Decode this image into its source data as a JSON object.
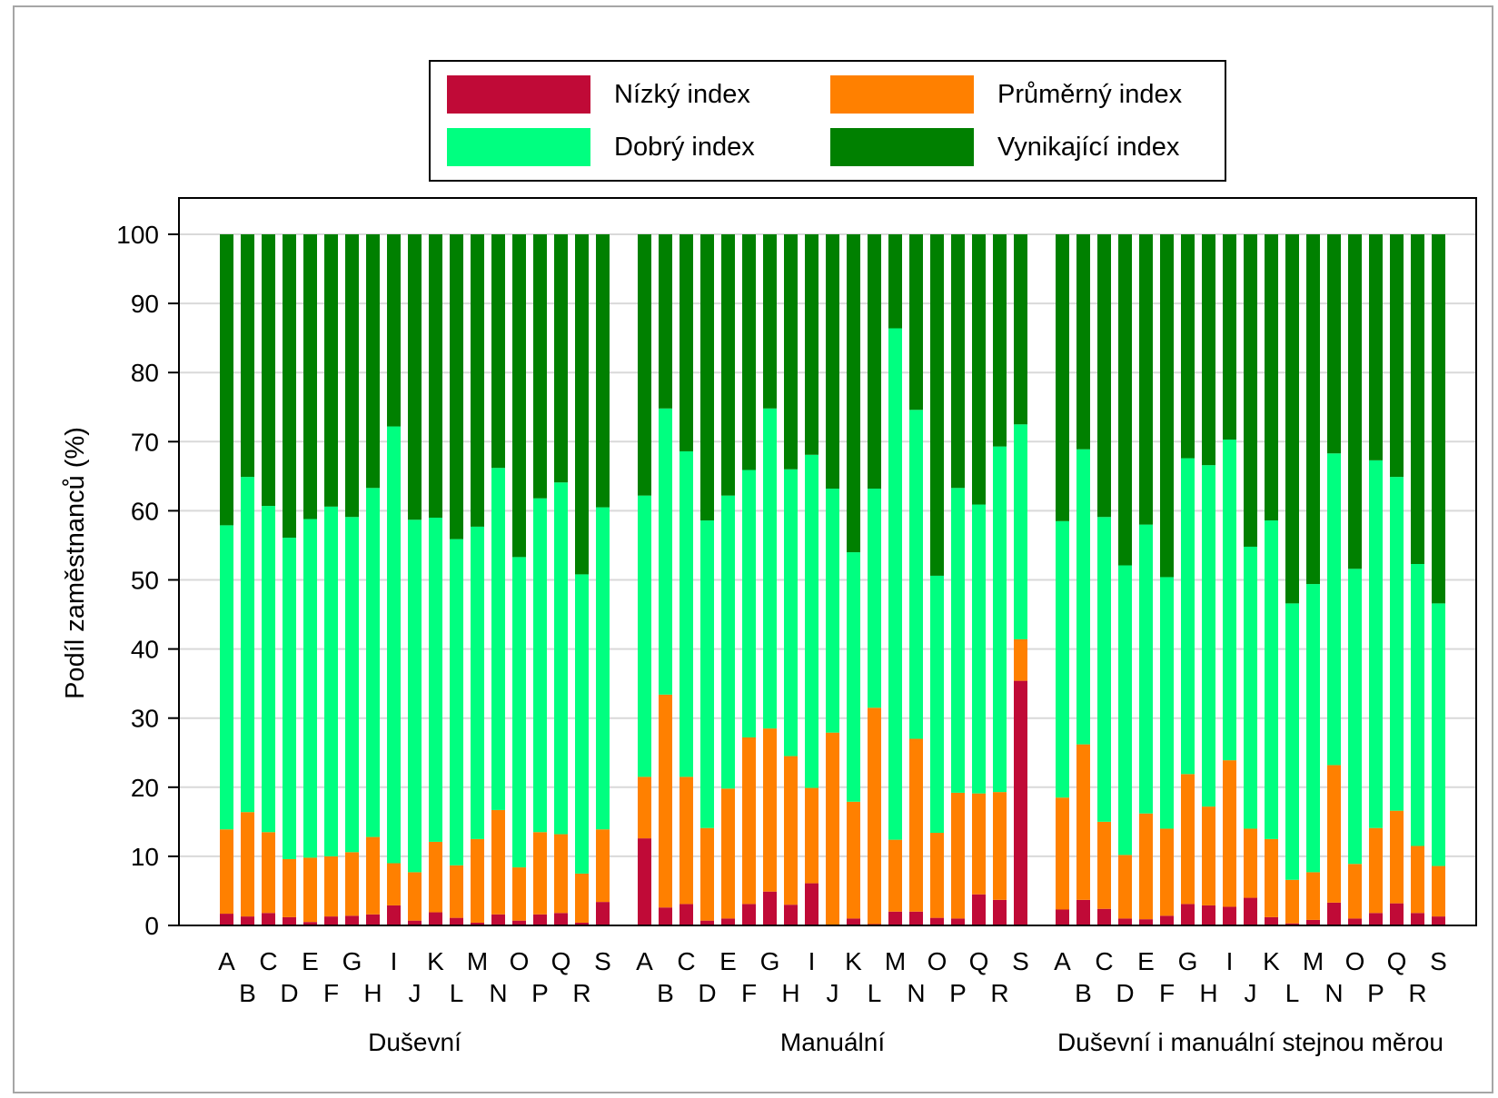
{
  "chart_data": {
    "type": "bar",
    "stacked": true,
    "ylabel": "Podíl zaměstnanců (%)",
    "xlabel": "",
    "ylim": [
      0,
      100
    ],
    "yticks": [
      0,
      10,
      20,
      30,
      40,
      50,
      60,
      70,
      80,
      90,
      100
    ],
    "grid": "horizontal",
    "legend_position": "top",
    "series": [
      {
        "name": "Nízký index",
        "color": "#c00a37"
      },
      {
        "name": "Průměrný index",
        "color": "#ff8000"
      },
      {
        "name": "Dobrý index",
        "color": "#00ff80"
      },
      {
        "name": "Vynikající index",
        "color": "#008000"
      }
    ],
    "groups": [
      {
        "name": "Duševní",
        "categories": [
          "A",
          "B",
          "C",
          "D",
          "E",
          "F",
          "G",
          "H",
          "I",
          "J",
          "K",
          "L",
          "M",
          "N",
          "O",
          "P",
          "Q",
          "R",
          "S"
        ],
        "nizky": [
          1.7,
          1.3,
          1.8,
          1.2,
          0.5,
          1.3,
          1.4,
          1.6,
          2.9,
          0.7,
          1.9,
          1.1,
          0.4,
          1.6,
          0.7,
          1.6,
          1.8,
          0.4,
          3.4
        ],
        "prumerny_cum": [
          13.9,
          16.4,
          13.5,
          9.6,
          9.8,
          10.0,
          10.6,
          12.8,
          9.0,
          7.7,
          12.1,
          8.7,
          12.5,
          16.7,
          8.4,
          13.5,
          13.2,
          7.5,
          13.9
        ],
        "dobry_cum": [
          57.9,
          64.9,
          60.7,
          56.1,
          58.8,
          60.6,
          59.1,
          63.3,
          72.2,
          58.7,
          59.0,
          55.9,
          57.7,
          66.2,
          53.3,
          61.8,
          64.1,
          50.8,
          60.5
        ]
      },
      {
        "name": "Manuální",
        "categories": [
          "A",
          "B",
          "C",
          "D",
          "E",
          "F",
          "G",
          "H",
          "I",
          "J",
          "K",
          "L",
          "M",
          "N",
          "O",
          "P",
          "Q",
          "R",
          "S"
        ],
        "nizky": [
          12.6,
          2.6,
          3.1,
          0.7,
          1.0,
          3.1,
          4.9,
          3.0,
          6.1,
          0.1,
          1.0,
          0.2,
          2.0,
          2.0,
          1.1,
          1.0,
          4.5,
          3.7,
          35.4
        ],
        "prumerny_cum": [
          21.5,
          33.4,
          21.5,
          14.1,
          19.8,
          27.2,
          28.5,
          24.5,
          19.9,
          27.9,
          17.9,
          31.5,
          12.4,
          27.0,
          13.4,
          19.2,
          19.1,
          19.3,
          41.4
        ],
        "dobry_cum": [
          62.2,
          74.8,
          68.6,
          58.6,
          62.2,
          65.9,
          74.8,
          66.0,
          68.1,
          63.2,
          54.0,
          63.2,
          86.4,
          74.6,
          50.6,
          63.3,
          60.9,
          69.3,
          72.5
        ]
      },
      {
        "name": "Duševní i manuální stejnou měrou",
        "categories": [
          "A",
          "B",
          "C",
          "D",
          "E",
          "F",
          "G",
          "H",
          "I",
          "J",
          "K",
          "L",
          "M",
          "N",
          "O",
          "P",
          "Q",
          "R",
          "S"
        ],
        "nizky": [
          2.3,
          3.7,
          2.4,
          1.0,
          0.9,
          1.4,
          3.1,
          2.9,
          2.7,
          4.0,
          1.2,
          0.3,
          0.8,
          3.3,
          1.0,
          1.8,
          3.2,
          1.8,
          1.3
        ],
        "prumerny_cum": [
          18.5,
          26.2,
          15.0,
          10.2,
          16.2,
          14.0,
          21.9,
          17.2,
          23.9,
          14.0,
          12.5,
          6.6,
          7.7,
          23.2,
          8.9,
          14.1,
          16.6,
          11.5,
          8.6
        ],
        "dobry_cum": [
          58.5,
          68.9,
          59.1,
          52.1,
          58.0,
          50.4,
          67.6,
          66.6,
          70.3,
          54.8,
          58.6,
          46.6,
          49.4,
          68.3,
          51.6,
          67.3,
          64.9,
          52.3,
          46.6
        ]
      }
    ]
  }
}
